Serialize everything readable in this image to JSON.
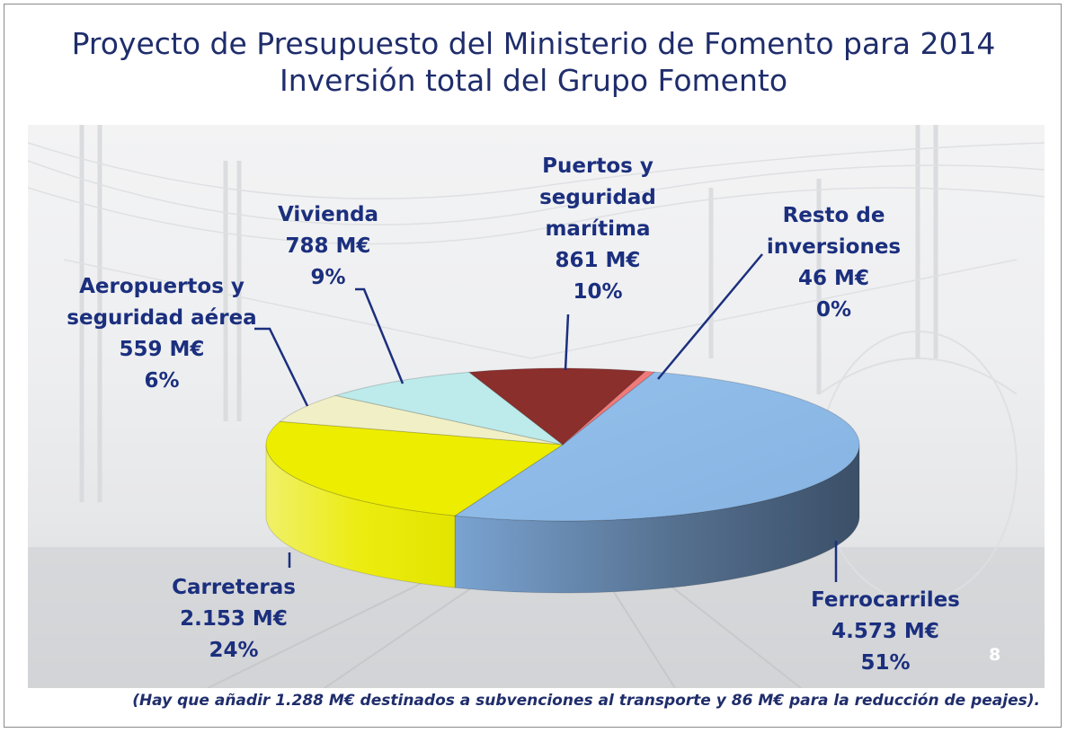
{
  "title": {
    "line1": "Proyecto de Presupuesto del Ministerio de Fomento para 2014",
    "line2": "Inversión total del Grupo Fomento"
  },
  "chart_data": {
    "type": "pie",
    "style": "3d",
    "slices": [
      {
        "name_lines": [
          "Ferrocarriles"
        ],
        "value": "4.573 M€",
        "percent": "51%",
        "amount": 4573,
        "color": "#8fbbe8"
      },
      {
        "name_lines": [
          "Carreteras"
        ],
        "value": "2.153 M€",
        "percent": "24%",
        "amount": 2153,
        "color": "#eded00"
      },
      {
        "name_lines": [
          "Aeropuertos y",
          "seguridad aérea"
        ],
        "value": "559 M€",
        "percent": "6%",
        "amount": 559,
        "color": "#f0efc6"
      },
      {
        "name_lines": [
          "Vivienda"
        ],
        "value": "788 M€",
        "percent": "9%",
        "amount": 788,
        "color": "#bdeaea"
      },
      {
        "name_lines": [
          "Puertos y",
          "seguridad",
          "marítima"
        ],
        "value": "861 M€",
        "percent": "10%",
        "amount": 861,
        "color": "#8b2f2c"
      },
      {
        "name_lines": [
          "Resto de",
          "inversiones"
        ],
        "value": "46 M€",
        "percent": "0%",
        "amount": 46,
        "color": "#f07a7a"
      }
    ]
  },
  "slide_number": "8",
  "footnote": "(Hay que añadir 1.288 M€ destinados a subvenciones al transporte y 86 M€ para la reducción de peajes)."
}
